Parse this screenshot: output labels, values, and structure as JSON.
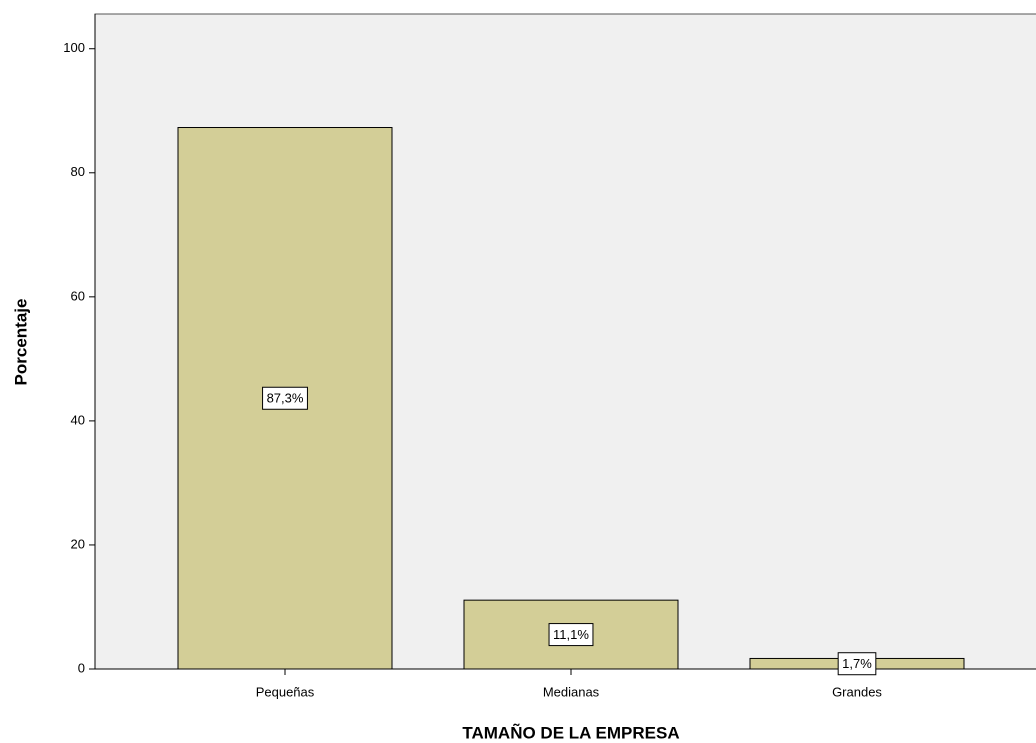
{
  "chart_data": {
    "type": "bar",
    "x_label": "TAMAÑO DE LA EMPRESA",
    "y_label": "Porcentaje",
    "categories": [
      "Pequeñas",
      "Medianas",
      "Grandes"
    ],
    "values": [
      87.3,
      11.1,
      1.7
    ],
    "value_labels": [
      "87,3%",
      "11,1%",
      "1,7%"
    ],
    "color": "#d3ce97",
    "ylim": [
      0,
      105.6
    ],
    "yticks": [
      0,
      20,
      40,
      60,
      80,
      100
    ],
    "grid": false
  }
}
